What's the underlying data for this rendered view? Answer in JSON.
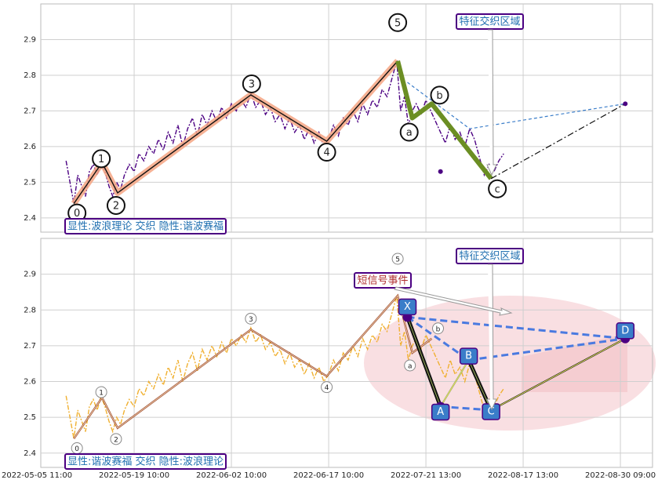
{
  "chart_data": [
    {
      "type": "line",
      "annotation": "显性:波浪理论 交织 隐性:谐波赛福",
      "region_label": "特征交织区域",
      "xlim": [
        4,
        633
      ],
      "xticks": [
        0,
        100,
        200,
        300,
        400,
        500,
        600
      ],
      "ylim": [
        2.36,
        3.0
      ],
      "yticks": [
        2.4,
        2.5,
        2.6,
        2.7,
        2.8,
        2.9
      ],
      "grid": true,
      "price": {
        "color": "#4b0082",
        "x": [
          30,
          34,
          38,
          42,
          46,
          50,
          54,
          58,
          62,
          66,
          70,
          74,
          78,
          82,
          86,
          90,
          95,
          100,
          105,
          110,
          115,
          120,
          125,
          130,
          135,
          140,
          145,
          150,
          155,
          160,
          165,
          170,
          175,
          180,
          185,
          190,
          195,
          200,
          205,
          210,
          215,
          220,
          225,
          230,
          235,
          240,
          245,
          250,
          255,
          260,
          265,
          270,
          275,
          280,
          285,
          290,
          295,
          300,
          305,
          310,
          315,
          320,
          325,
          330,
          335,
          340,
          345,
          350,
          355,
          360,
          365,
          370,
          374,
          378,
          382,
          386,
          390,
          395,
          400,
          405,
          410,
          415,
          420,
          425,
          430,
          435,
          440,
          445,
          450,
          455,
          460,
          465,
          470,
          475,
          480
        ],
        "values": [
          2.56,
          2.5,
          2.44,
          2.52,
          2.49,
          2.46,
          2.53,
          2.55,
          2.52,
          2.56,
          2.53,
          2.49,
          2.46,
          2.5,
          2.48,
          2.52,
          2.55,
          2.53,
          2.58,
          2.56,
          2.6,
          2.58,
          2.62,
          2.59,
          2.64,
          2.61,
          2.66,
          2.6,
          2.65,
          2.68,
          2.63,
          2.69,
          2.66,
          2.7,
          2.67,
          2.71,
          2.68,
          2.72,
          2.7,
          2.73,
          2.71,
          2.75,
          2.71,
          2.73,
          2.69,
          2.71,
          2.67,
          2.69,
          2.65,
          2.68,
          2.64,
          2.66,
          2.62,
          2.65,
          2.61,
          2.64,
          2.6,
          2.62,
          2.66,
          2.63,
          2.68,
          2.66,
          2.7,
          2.67,
          2.72,
          2.69,
          2.73,
          2.71,
          2.76,
          2.74,
          2.79,
          2.84,
          2.7,
          2.74,
          2.66,
          2.7,
          2.72,
          2.69,
          2.73,
          2.7,
          2.67,
          2.64,
          2.61,
          2.66,
          2.62,
          2.64,
          2.6,
          2.65,
          2.62,
          2.57,
          2.52,
          2.55,
          2.53,
          2.56,
          2.58
        ]
      },
      "wave": {
        "labels": [
          "0",
          "1",
          "2",
          "3",
          "4",
          "5",
          "a",
          "b",
          "c"
        ],
        "x": [
          38,
          67,
          83,
          220,
          298,
          371,
          386,
          406,
          467
        ],
        "values": [
          2.44,
          2.555,
          2.47,
          2.745,
          2.615,
          2.84,
          2.68,
          2.72,
          2.51
        ],
        "color": "#f4a582",
        "correction_color": "#6b8e23"
      },
      "projection": {
        "x": [
          381,
          445,
          605
        ],
        "values": [
          2.78,
          2.65,
          2.72
        ],
        "color": "#3a7dc9"
      },
      "extension": {
        "x": [
          467,
          605
        ],
        "values": [
          2.51,
          2.72
        ]
      },
      "points": {
        "x": [
          415,
          605
        ],
        "values": [
          2.53,
          2.72
        ],
        "color": "#4b0082"
      }
    },
    {
      "type": "line",
      "annotation": "显性:谐波赛福 交织 隐性:波浪理论",
      "region_label": "特征交织区域",
      "event_label": "短信号事件",
      "xlim": [
        4,
        633
      ],
      "xticks": [
        {
          "value": 0,
          "label": "2022-05-05 11:00"
        },
        {
          "value": 100,
          "label": "2022-05-19 10:00"
        },
        {
          "value": 200,
          "label": "2022-06-02 10:00"
        },
        {
          "value": 300,
          "label": "2022-06-17 10:00"
        },
        {
          "value": 400,
          "label": "2022-07-21 13:00"
        },
        {
          "value": 500,
          "label": "2022-08-17 13:00"
        },
        {
          "value": 600,
          "label": "2022-08-30 09:00"
        }
      ],
      "ylim": [
        2.36,
        3.0
      ],
      "yticks": [
        2.4,
        2.5,
        2.6,
        2.7,
        2.8,
        2.9
      ],
      "grid": true,
      "price": {
        "color": "#f0b030",
        "x": [
          30,
          34,
          38,
          42,
          46,
          50,
          54,
          58,
          62,
          66,
          70,
          74,
          78,
          82,
          86,
          90,
          95,
          100,
          105,
          110,
          115,
          120,
          125,
          130,
          135,
          140,
          145,
          150,
          155,
          160,
          165,
          170,
          175,
          180,
          185,
          190,
          195,
          200,
          205,
          210,
          215,
          220,
          225,
          230,
          235,
          240,
          245,
          250,
          255,
          260,
          265,
          270,
          275,
          280,
          285,
          290,
          295,
          300,
          305,
          310,
          315,
          320,
          325,
          330,
          335,
          340,
          345,
          350,
          355,
          360,
          365,
          370,
          374,
          378,
          382,
          386,
          390,
          395,
          400,
          405,
          410,
          415,
          420,
          425,
          430,
          435,
          440,
          445,
          450,
          455,
          460,
          465,
          470,
          475,
          480
        ],
        "values": [
          2.56,
          2.5,
          2.44,
          2.52,
          2.49,
          2.46,
          2.53,
          2.55,
          2.52,
          2.56,
          2.53,
          2.49,
          2.46,
          2.5,
          2.48,
          2.52,
          2.55,
          2.53,
          2.58,
          2.56,
          2.6,
          2.58,
          2.62,
          2.59,
          2.64,
          2.61,
          2.66,
          2.6,
          2.65,
          2.68,
          2.63,
          2.69,
          2.66,
          2.7,
          2.67,
          2.71,
          2.68,
          2.72,
          2.7,
          2.73,
          2.71,
          2.75,
          2.71,
          2.73,
          2.69,
          2.71,
          2.67,
          2.69,
          2.65,
          2.68,
          2.64,
          2.66,
          2.62,
          2.65,
          2.61,
          2.64,
          2.6,
          2.62,
          2.66,
          2.63,
          2.68,
          2.66,
          2.7,
          2.67,
          2.72,
          2.69,
          2.73,
          2.71,
          2.76,
          2.74,
          2.79,
          2.84,
          2.7,
          2.74,
          2.66,
          2.7,
          2.72,
          2.69,
          2.73,
          2.7,
          2.67,
          2.64,
          2.61,
          2.66,
          2.62,
          2.64,
          2.6,
          2.65,
          2.62,
          2.57,
          2.52,
          2.55,
          2.53,
          2.56,
          2.58
        ]
      },
      "wave": {
        "labels": [
          "0",
          "1",
          "2",
          "3",
          "4",
          "5",
          "a",
          "b"
        ],
        "x": [
          38,
          67,
          83,
          220,
          298,
          371,
          386,
          406
        ],
        "values": [
          2.44,
          2.555,
          2.47,
          2.745,
          2.615,
          2.84,
          2.68,
          2.72
        ],
        "color": "#8b2500"
      },
      "harmonic": {
        "labels": [
          "X",
          "A",
          "B",
          "C",
          "D"
        ],
        "x": [
          381,
          415,
          444,
          467,
          605
        ],
        "values": [
          2.78,
          2.53,
          2.66,
          2.52,
          2.72
        ],
        "color": "#3a7dc9",
        "dash_color": "#4a7ae0"
      }
    }
  ]
}
